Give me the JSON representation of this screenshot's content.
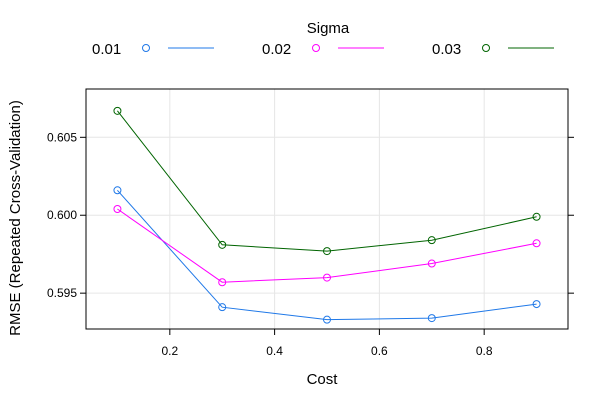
{
  "chart_data": {
    "type": "line",
    "legend": {
      "title": "Sigma",
      "placement": "top"
    },
    "xlabel": "Cost",
    "ylabel": "RMSE (Repeated Cross-Validation)",
    "xlim": [
      0.04,
      0.96
    ],
    "ylim": [
      0.5927,
      0.6081
    ],
    "xticks": [
      0.2,
      0.4,
      0.6,
      0.8
    ],
    "xtick_labels": [
      "0.2",
      "0.4",
      "0.6",
      "0.8"
    ],
    "yticks": [
      0.595,
      0.6,
      0.605
    ],
    "ytick_labels": [
      "0.595",
      "0.600",
      "0.605"
    ],
    "grid": true,
    "x": [
      0.1,
      0.3,
      0.5,
      0.7,
      0.9
    ],
    "series": [
      {
        "name": "0.01",
        "color": "#1f78e8",
        "values": [
          0.6016,
          0.5941,
          0.5933,
          0.5934,
          0.5943
        ]
      },
      {
        "name": "0.02",
        "color": "#ff00ff",
        "values": [
          0.6004,
          0.5957,
          0.596,
          0.5969,
          0.5982
        ]
      },
      {
        "name": "0.03",
        "color": "#006400",
        "values": [
          0.6067,
          0.5981,
          0.5977,
          0.5984,
          0.5999
        ]
      }
    ]
  }
}
